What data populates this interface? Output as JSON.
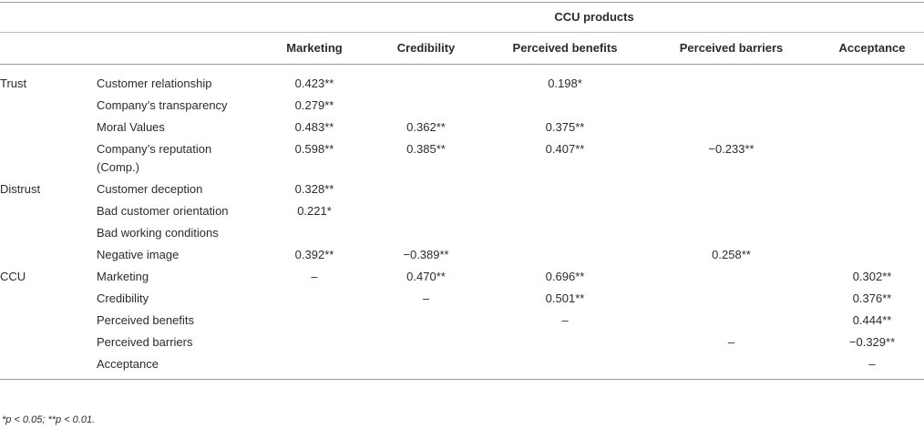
{
  "table": {
    "group_header": "CCU products",
    "columns": [
      "Marketing",
      "Credibility",
      "Perceived benefits",
      "Perceived barriers",
      "Acceptance"
    ],
    "groups": [
      {
        "name": "Trust",
        "rows": [
          {
            "label": "Customer relationship",
            "cells": [
              "0.423**",
              null,
              "0.198*",
              null,
              null
            ]
          },
          {
            "label": "Company’s transparency",
            "cells": [
              "0.279**",
              null,
              null,
              null,
              null
            ]
          },
          {
            "label": "Moral Values",
            "cells": [
              "0.483**",
              "0.362**",
              "0.375**",
              null,
              null
            ]
          },
          {
            "label": "Company’s reputation (Comp.)",
            "cells": [
              "0.598**",
              "0.385**",
              "0.407**",
              "−0.233**",
              null
            ]
          }
        ]
      },
      {
        "name": "Distrust",
        "rows": [
          {
            "label": "Customer deception",
            "cells": [
              "0.328**",
              null,
              null,
              null,
              null
            ]
          },
          {
            "label": "Bad customer orientation",
            "cells": [
              "0.221*",
              null,
              null,
              null,
              null
            ]
          },
          {
            "label": "Bad working conditions",
            "cells": [
              null,
              null,
              null,
              null,
              null
            ]
          },
          {
            "label": "Negative image",
            "cells": [
              "0.392**",
              "−0.389**",
              null,
              "0.258**",
              null
            ]
          }
        ]
      },
      {
        "name": "CCU",
        "rows": [
          {
            "label": "Marketing",
            "cells": [
              "–",
              "0.470**",
              "0.696**",
              null,
              "0.302**"
            ]
          },
          {
            "label": "Credibility",
            "cells": [
              null,
              "–",
              "0.501**",
              null,
              "0.376**"
            ]
          },
          {
            "label": "Perceived benefits",
            "cells": [
              null,
              null,
              "–",
              null,
              "0.444**"
            ]
          },
          {
            "label": "Perceived barriers",
            "cells": [
              null,
              null,
              null,
              "–",
              "−0.329**"
            ]
          },
          {
            "label": "Acceptance",
            "cells": [
              null,
              null,
              null,
              null,
              "–"
            ]
          }
        ]
      }
    ],
    "footnote": "*p < 0.05; **p < 0.01."
  }
}
